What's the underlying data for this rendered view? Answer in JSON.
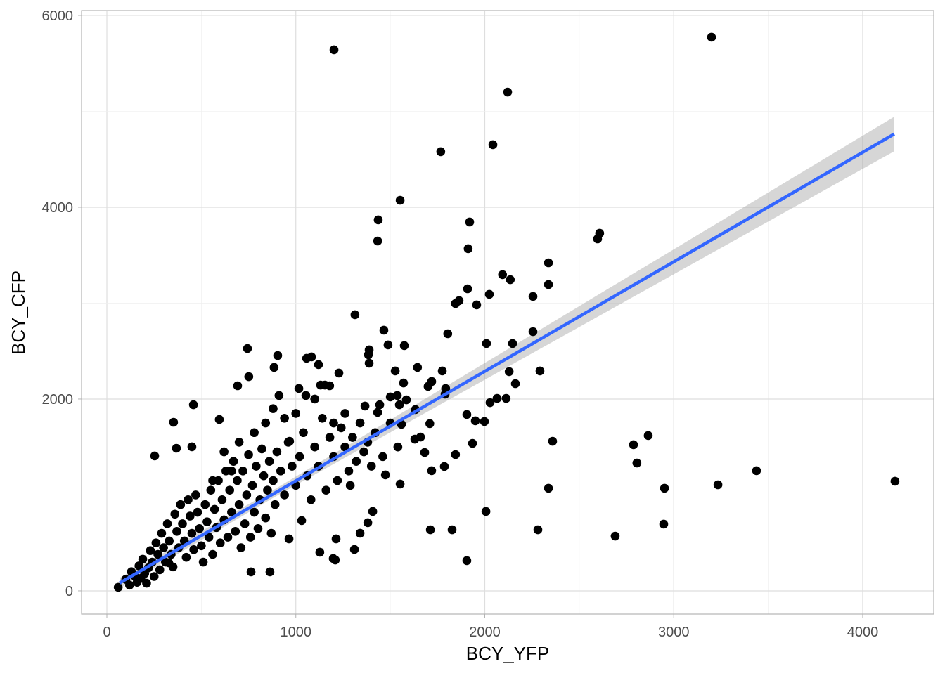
{
  "chart_data": {
    "type": "scatter",
    "title": "",
    "xlabel": "BCY_YFP",
    "ylabel": "BCY_CFP",
    "xlim": [
      -134,
      4376
    ],
    "ylim": [
      -242,
      6051
    ],
    "xticks": [
      0,
      1000,
      2000,
      3000,
      4000
    ],
    "xtick_labels": [
      "0",
      "1000",
      "2000",
      "3000",
      "4000"
    ],
    "yticks": [
      0,
      2000,
      4000,
      6000
    ],
    "ytick_labels": [
      "0",
      "2000",
      "4000",
      "6000"
    ],
    "grid": true,
    "legend": "none",
    "colors": {
      "points": "#000000",
      "fit_line": "#3366FF",
      "ribbon": "#999999",
      "grid": "#DEDEDE",
      "border": "#B3B3B3",
      "tick_text": "#4D4D4D"
    },
    "smooth": {
      "method": "lm",
      "intercept": 5,
      "slope": 1.142,
      "x_range": [
        67,
        4167
      ],
      "ci_halfwidth_start": 40,
      "ci_halfwidth_end": 180
    },
    "points": [
      [
        1202,
        5641
      ],
      [
        3200,
        5773
      ],
      [
        2121,
        5201
      ],
      [
        1767,
        4579
      ],
      [
        2043,
        4652
      ],
      [
        1552,
        4073
      ],
      [
        1436,
        3868
      ],
      [
        1433,
        3648
      ],
      [
        1920,
        3846
      ],
      [
        1912,
        3568
      ],
      [
        2608,
        3729
      ],
      [
        2597,
        3670
      ],
      [
        2337,
        3421
      ],
      [
        2094,
        3297
      ],
      [
        2135,
        3245
      ],
      [
        2337,
        3194
      ],
      [
        1909,
        3150
      ],
      [
        1864,
        3026
      ],
      [
        1845,
        2996
      ],
      [
        1957,
        2982
      ],
      [
        2024,
        3092
      ],
      [
        2255,
        3070
      ],
      [
        1313,
        2879
      ],
      [
        1466,
        2718
      ],
      [
        1804,
        2681
      ],
      [
        2255,
        2703
      ],
      [
        1488,
        2564
      ],
      [
        1574,
        2557
      ],
      [
        2009,
        2579
      ],
      [
        2147,
        2579
      ],
      [
        1388,
        2513
      ],
      [
        1384,
        2462
      ],
      [
        744,
        2527
      ],
      [
        904,
        2454
      ],
      [
        1083,
        2440
      ],
      [
        1057,
        2425
      ],
      [
        1120,
        2359
      ],
      [
        1228,
        2271
      ],
      [
        1388,
        2374
      ],
      [
        751,
        2234
      ],
      [
        885,
        2330
      ],
      [
        1526,
        2293
      ],
      [
        1644,
        2330
      ],
      [
        1775,
        2293
      ],
      [
        2292,
        2293
      ],
      [
        2129,
        2286
      ],
      [
        1570,
        2168
      ],
      [
        1719,
        2183
      ],
      [
        1700,
        2132
      ],
      [
        2162,
        2161
      ],
      [
        692,
        2139
      ],
      [
        1131,
        2146
      ],
      [
        1179,
        2139
      ],
      [
        1154,
        2146
      ],
      [
        1016,
        2110
      ],
      [
        1053,
        2037
      ],
      [
        911,
        2037
      ],
      [
        1793,
        2110
      ],
      [
        1790,
        2051
      ],
      [
        1537,
        2037
      ],
      [
        1585,
        1992
      ],
      [
        1500,
        2022
      ],
      [
        2028,
        1963
      ],
      [
        2065,
        2007
      ],
      [
        2113,
        2007
      ],
      [
        1633,
        1890
      ],
      [
        1366,
        1927
      ],
      [
        1444,
        1941
      ],
      [
        1548,
        1941
      ],
      [
        1433,
        1861
      ],
      [
        1905,
        1839
      ],
      [
        1950,
        1773
      ],
      [
        1998,
        1766
      ],
      [
        1709,
        1744
      ],
      [
        1559,
        1737
      ],
      [
        458,
        1941
      ],
      [
        353,
        1758
      ],
      [
        595,
        1787
      ],
      [
        253,
        1407
      ],
      [
        368,
        1487
      ],
      [
        450,
        1502
      ],
      [
        967,
        1560
      ],
      [
        1630,
        1582
      ],
      [
        1660,
        1604
      ],
      [
        1682,
        1443
      ],
      [
        1935,
        1538
      ],
      [
        1845,
        1421
      ],
      [
        1719,
        1253
      ],
      [
        1786,
        1297
      ],
      [
        1552,
        1114
      ],
      [
        1474,
        1209
      ],
      [
        2359,
        1560
      ],
      [
        2787,
        1524
      ],
      [
        2865,
        1619
      ],
      [
        2805,
        1333
      ],
      [
        3438,
        1253
      ],
      [
        3234,
        1106
      ],
      [
        2951,
        1070
      ],
      [
        2337,
        1070
      ],
      [
        4171,
        1143
      ],
      [
        2006,
        828
      ],
      [
        1712,
        637
      ],
      [
        1827,
        637
      ],
      [
        2281,
        637
      ],
      [
        2947,
        696
      ],
      [
        2690,
        571
      ],
      [
        1905,
        315
      ],
      [
        1209,
        322
      ],
      [
        1198,
        337
      ],
      [
        1127,
        403
      ],
      [
        1310,
        432
      ],
      [
        1213,
        542
      ],
      [
        1340,
        601
      ],
      [
        1381,
        711
      ],
      [
        1407,
        828
      ],
      [
        1288,
        1099
      ],
      [
        1031,
        733
      ],
      [
        964,
        542
      ],
      [
        863,
        198
      ],
      [
        763,
        198
      ],
      [
        60,
        37
      ],
      [
        327,
        293
      ],
      [
        100,
        120
      ],
      [
        120,
        60
      ],
      [
        130,
        200
      ],
      [
        150,
        150
      ],
      [
        160,
        90
      ],
      [
        170,
        260
      ],
      [
        180,
        130
      ],
      [
        190,
        330
      ],
      [
        200,
        180
      ],
      [
        210,
        80
      ],
      [
        220,
        240
      ],
      [
        230,
        420
      ],
      [
        240,
        300
      ],
      [
        250,
        150
      ],
      [
        260,
        500
      ],
      [
        270,
        380
      ],
      [
        280,
        220
      ],
      [
        290,
        600
      ],
      [
        300,
        450
      ],
      [
        310,
        300
      ],
      [
        320,
        700
      ],
      [
        330,
        520
      ],
      [
        340,
        380
      ],
      [
        350,
        250
      ],
      [
        360,
        800
      ],
      [
        370,
        620
      ],
      [
        380,
        450
      ],
      [
        390,
        900
      ],
      [
        400,
        700
      ],
      [
        410,
        520
      ],
      [
        420,
        350
      ],
      [
        430,
        950
      ],
      [
        440,
        780
      ],
      [
        450,
        600
      ],
      [
        460,
        430
      ],
      [
        470,
        1000
      ],
      [
        480,
        820
      ],
      [
        490,
        650
      ],
      [
        500,
        470
      ],
      [
        510,
        300
      ],
      [
        520,
        900
      ],
      [
        530,
        720
      ],
      [
        540,
        560
      ],
      [
        550,
        1050
      ],
      [
        560,
        380
      ],
      [
        570,
        850
      ],
      [
        580,
        660
      ],
      [
        590,
        1150
      ],
      [
        600,
        500
      ],
      [
        610,
        950
      ],
      [
        620,
        740
      ],
      [
        630,
        1250
      ],
      [
        640,
        560
      ],
      [
        650,
        1050
      ],
      [
        660,
        820
      ],
      [
        670,
        1350
      ],
      [
        680,
        620
      ],
      [
        690,
        1150
      ],
      [
        700,
        900
      ],
      [
        710,
        450
      ],
      [
        720,
        1250
      ],
      [
        730,
        700
      ],
      [
        740,
        1000
      ],
      [
        750,
        1420
      ],
      [
        760,
        560
      ],
      [
        770,
        1100
      ],
      [
        780,
        820
      ],
      [
        790,
        1300
      ],
      [
        800,
        650
      ],
      [
        810,
        950
      ],
      [
        820,
        1480
      ],
      [
        830,
        1200
      ],
      [
        840,
        760
      ],
      [
        850,
        1050
      ],
      [
        860,
        1350
      ],
      [
        870,
        600
      ],
      [
        880,
        1150
      ],
      [
        890,
        900
      ],
      [
        900,
        1450
      ],
      [
        920,
        1250
      ],
      [
        940,
        1000
      ],
      [
        960,
        1550
      ],
      [
        980,
        1300
      ],
      [
        1000,
        1100
      ],
      [
        1020,
        1400
      ],
      [
        1040,
        1650
      ],
      [
        1060,
        1200
      ],
      [
        1080,
        950
      ],
      [
        1100,
        1500
      ],
      [
        1120,
        1300
      ],
      [
        1140,
        1800
      ],
      [
        1160,
        1050
      ],
      [
        1180,
        1600
      ],
      [
        1200,
        1400
      ],
      [
        1220,
        1150
      ],
      [
        1240,
        1700
      ],
      [
        1260,
        1500
      ],
      [
        1280,
        1250
      ],
      [
        1300,
        1600
      ],
      [
        1320,
        1350
      ],
      [
        1340,
        1750
      ],
      [
        1360,
        1450
      ],
      [
        1380,
        1550
      ],
      [
        1400,
        1300
      ],
      [
        1420,
        1650
      ],
      [
        1460,
        1400
      ],
      [
        1500,
        1750
      ],
      [
        1540,
        1500
      ],
      [
        880,
        1900
      ],
      [
        940,
        1800
      ],
      [
        560,
        1150
      ],
      [
        620,
        1450
      ],
      [
        700,
        1550
      ],
      [
        780,
        1650
      ],
      [
        840,
        1750
      ],
      [
        1000,
        1850
      ],
      [
        1100,
        2000
      ],
      [
        1260,
        1850
      ],
      [
        1200,
        1750
      ],
      [
        660,
        1250
      ]
    ]
  }
}
